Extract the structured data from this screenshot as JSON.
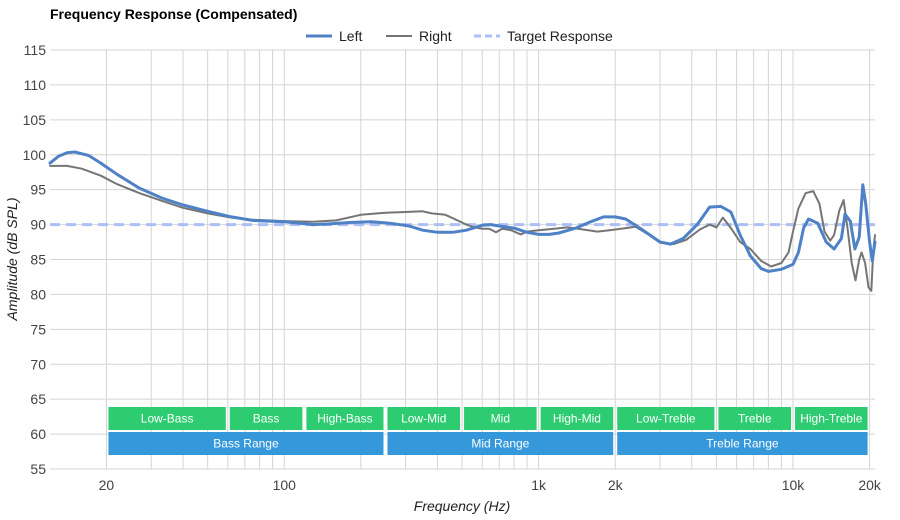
{
  "chart_data": {
    "type": "line",
    "title": "Frequency Response (Compensated)",
    "xlabel": "Frequency (Hz)",
    "ylabel": "Amplitude (dB SPL)",
    "xscale": "log",
    "xlim": [
      12,
      21000
    ],
    "ylim": [
      55,
      115
    ],
    "grid": true,
    "legend_position": "top-center",
    "x_tick_labels": [
      "20",
      "100",
      "1k",
      "2k",
      "10k",
      "20k"
    ],
    "x_ticks": [
      20,
      100,
      1000,
      2000,
      10000,
      20000
    ],
    "y_ticks": [
      55,
      60,
      65,
      70,
      75,
      80,
      85,
      90,
      95,
      100,
      105,
      110,
      115
    ],
    "series": [
      {
        "name": "Left",
        "color": "#4f81c7",
        "style": "solid",
        "points": [
          [
            12,
            98.8
          ],
          [
            13,
            99.8
          ],
          [
            14,
            100.3
          ],
          [
            15,
            100.4
          ],
          [
            17,
            99.9
          ],
          [
            19,
            98.8
          ],
          [
            22,
            97.2
          ],
          [
            27,
            95.2
          ],
          [
            33,
            93.8
          ],
          [
            40,
            92.8
          ],
          [
            50,
            91.9
          ],
          [
            62,
            91.1
          ],
          [
            75,
            90.6
          ],
          [
            100,
            90.4
          ],
          [
            115,
            90.2
          ],
          [
            130,
            90.0
          ],
          [
            150,
            90.1
          ],
          [
            180,
            90.3
          ],
          [
            220,
            90.4
          ],
          [
            260,
            90.2
          ],
          [
            310,
            89.8
          ],
          [
            350,
            89.2
          ],
          [
            400,
            88.9
          ],
          [
            460,
            88.9
          ],
          [
            520,
            89.2
          ],
          [
            600,
            89.9
          ],
          [
            650,
            90.0
          ],
          [
            700,
            89.8
          ],
          [
            800,
            89.5
          ],
          [
            900,
            88.9
          ],
          [
            1000,
            88.6
          ],
          [
            1100,
            88.6
          ],
          [
            1200,
            88.8
          ],
          [
            1400,
            89.5
          ],
          [
            1600,
            90.4
          ],
          [
            1800,
            91.1
          ],
          [
            2000,
            91.1
          ],
          [
            2200,
            90.8
          ],
          [
            2500,
            89.5
          ],
          [
            3000,
            87.5
          ],
          [
            3300,
            87.2
          ],
          [
            3700,
            88.0
          ],
          [
            4200,
            90.0
          ],
          [
            4700,
            92.5
          ],
          [
            5200,
            92.6
          ],
          [
            5700,
            91.8
          ],
          [
            6200,
            88.5
          ],
          [
            6800,
            85.5
          ],
          [
            7500,
            83.7
          ],
          [
            8000,
            83.3
          ],
          [
            9000,
            83.6
          ],
          [
            10000,
            84.3
          ],
          [
            10500,
            86.0
          ],
          [
            11000,
            89.5
          ],
          [
            11500,
            90.8
          ],
          [
            12500,
            90.2
          ],
          [
            13500,
            87.5
          ],
          [
            14500,
            86.5
          ],
          [
            15500,
            88.0
          ],
          [
            16000,
            91.5
          ],
          [
            16800,
            90.5
          ],
          [
            17500,
            86.5
          ],
          [
            18200,
            88.2
          ],
          [
            18800,
            95.7
          ],
          [
            19300,
            93.0
          ],
          [
            20000,
            87.5
          ],
          [
            20500,
            84.8
          ],
          [
            21000,
            87.5
          ]
        ]
      },
      {
        "name": "Right",
        "color": "#757575",
        "style": "solid",
        "points": [
          [
            12,
            98.4
          ],
          [
            14,
            98.4
          ],
          [
            16,
            98.0
          ],
          [
            19,
            97.0
          ],
          [
            22,
            95.8
          ],
          [
            27,
            94.5
          ],
          [
            33,
            93.4
          ],
          [
            40,
            92.4
          ],
          [
            50,
            91.6
          ],
          [
            62,
            91.0
          ],
          [
            75,
            90.7
          ],
          [
            100,
            90.5
          ],
          [
            130,
            90.4
          ],
          [
            160,
            90.6
          ],
          [
            200,
            91.4
          ],
          [
            250,
            91.7
          ],
          [
            300,
            91.8
          ],
          [
            350,
            91.9
          ],
          [
            380,
            91.6
          ],
          [
            430,
            91.4
          ],
          [
            480,
            90.6
          ],
          [
            520,
            90.0
          ],
          [
            560,
            89.6
          ],
          [
            600,
            89.4
          ],
          [
            640,
            89.4
          ],
          [
            680,
            88.9
          ],
          [
            720,
            89.4
          ],
          [
            780,
            89.2
          ],
          [
            850,
            88.6
          ],
          [
            900,
            89.0
          ],
          [
            1000,
            89.2
          ],
          [
            1150,
            89.4
          ],
          [
            1300,
            89.6
          ],
          [
            1500,
            89.3
          ],
          [
            1700,
            89.0
          ],
          [
            1900,
            89.2
          ],
          [
            2200,
            89.5
          ],
          [
            2400,
            89.7
          ],
          [
            2700,
            88.6
          ],
          [
            3000,
            87.4
          ],
          [
            3400,
            87.2
          ],
          [
            3800,
            87.8
          ],
          [
            4300,
            89.3
          ],
          [
            4700,
            90.0
          ],
          [
            5000,
            89.6
          ],
          [
            5300,
            91.0
          ],
          [
            5700,
            89.5
          ],
          [
            6200,
            87.5
          ],
          [
            6800,
            86.5
          ],
          [
            7500,
            84.8
          ],
          [
            8200,
            84.0
          ],
          [
            9000,
            84.5
          ],
          [
            9600,
            86.0
          ],
          [
            10000,
            89.0
          ],
          [
            10500,
            92.3
          ],
          [
            11200,
            94.5
          ],
          [
            12000,
            94.8
          ],
          [
            12700,
            93.0
          ],
          [
            13300,
            89.0
          ],
          [
            14000,
            87.7
          ],
          [
            14500,
            88.5
          ],
          [
            15200,
            92.0
          ],
          [
            15800,
            93.5
          ],
          [
            16400,
            89.3
          ],
          [
            17000,
            84.5
          ],
          [
            17600,
            82.0
          ],
          [
            18200,
            85.0
          ],
          [
            18600,
            86.0
          ],
          [
            19200,
            84.5
          ],
          [
            19800,
            81.0
          ],
          [
            20300,
            80.5
          ],
          [
            20700,
            86.5
          ],
          [
            21000,
            88.5
          ]
        ]
      },
      {
        "name": "Target Response",
        "color": "#aebff5",
        "style": "dashed",
        "points": [
          [
            12,
            90.0
          ],
          [
            21000,
            90.0
          ]
        ]
      }
    ],
    "bands": [
      {
        "label": "Low-Bass",
        "from": 20,
        "to": 60,
        "color": "#2ecc71"
      },
      {
        "label": "Bass",
        "from": 60,
        "to": 120,
        "color": "#2ecc71"
      },
      {
        "label": "High-Bass",
        "from": 120,
        "to": 250,
        "color": "#2ecc71"
      },
      {
        "label": "Low-Mid",
        "from": 250,
        "to": 500,
        "color": "#2ecc71"
      },
      {
        "label": "Mid",
        "from": 500,
        "to": 1000,
        "color": "#2ecc71"
      },
      {
        "label": "High-Mid",
        "from": 1000,
        "to": 2000,
        "color": "#2ecc71"
      },
      {
        "label": "Low-Treble",
        "from": 2000,
        "to": 5000,
        "color": "#2ecc71"
      },
      {
        "label": "Treble",
        "from": 5000,
        "to": 10000,
        "color": "#2ecc71"
      },
      {
        "label": "High-Treble",
        "from": 10000,
        "to": 20000,
        "color": "#2ecc71"
      }
    ],
    "ranges": [
      {
        "label": "Bass Range",
        "from": 20,
        "to": 250,
        "color": "#3498db"
      },
      {
        "label": "Mid Range",
        "from": 250,
        "to": 2000,
        "color": "#3498db"
      },
      {
        "label": "Treble Range",
        "from": 2000,
        "to": 20000,
        "color": "#3498db"
      }
    ]
  }
}
